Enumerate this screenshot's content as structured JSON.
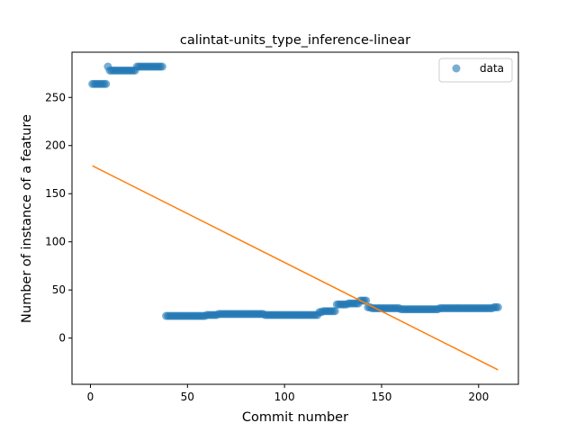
{
  "chart_data": {
    "type": "scatter",
    "title": "calintat-units_type_inference-linear",
    "xlabel": "Commit number",
    "ylabel": "Number of instance of a feature",
    "xlim": [
      -9.5,
      220.5
    ],
    "ylim": [
      -48,
      297
    ],
    "xticks": [
      0,
      50,
      100,
      150,
      200
    ],
    "yticks": [
      0,
      50,
      100,
      150,
      200,
      250
    ],
    "grid": false,
    "legend": {
      "placement": "top-right",
      "entries": [
        "data"
      ]
    },
    "colors": {
      "data": "#1f77b4",
      "fit": "#ff7f0e"
    },
    "series": [
      {
        "name": "data",
        "kind": "scatter",
        "segments": [
          {
            "x_from": 1,
            "x_to": 9,
            "y": 264
          },
          {
            "x_from": 9,
            "x_to": 10,
            "y": 282
          },
          {
            "x_from": 10,
            "x_to": 24,
            "y": 278
          },
          {
            "x_from": 24,
            "x_to": 26,
            "y": 282
          },
          {
            "x_from": 26,
            "x_to": 38,
            "y": 282
          },
          {
            "x_from": 39,
            "x_to": 60,
            "y": 23
          },
          {
            "x_from": 60,
            "x_to": 66,
            "y": 24
          },
          {
            "x_from": 66,
            "x_to": 90,
            "y": 25
          },
          {
            "x_from": 90,
            "x_to": 118,
            "y": 24
          },
          {
            "x_from": 118,
            "x_to": 120,
            "y": 27
          },
          {
            "x_from": 120,
            "x_to": 127,
            "y": 28
          },
          {
            "x_from": 127,
            "x_to": 133,
            "y": 35
          },
          {
            "x_from": 133,
            "x_to": 139,
            "y": 36
          },
          {
            "x_from": 139,
            "x_to": 143,
            "y": 39
          },
          {
            "x_from": 143,
            "x_to": 145,
            "y": 32
          },
          {
            "x_from": 145,
            "x_to": 160,
            "y": 31
          },
          {
            "x_from": 160,
            "x_to": 180,
            "y": 30
          },
          {
            "x_from": 180,
            "x_to": 190,
            "y": 31
          },
          {
            "x_from": 190,
            "x_to": 208,
            "y": 31
          },
          {
            "x_from": 208,
            "x_to": 210,
            "y": 32
          }
        ]
      },
      {
        "name": "",
        "kind": "line",
        "x": [
          1,
          210
        ],
        "y": [
          179,
          -33
        ]
      }
    ]
  }
}
